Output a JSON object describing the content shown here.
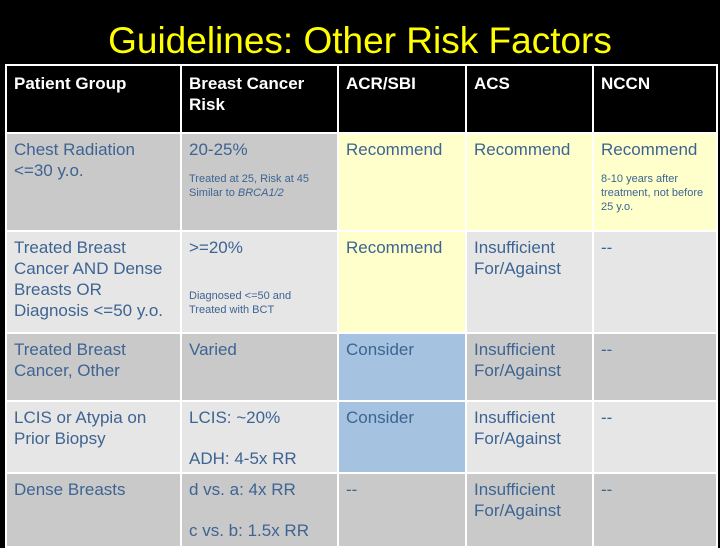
{
  "slide": {
    "title": "Guidelines:  Other Risk Factors"
  },
  "colors": {
    "title": "#ffff00",
    "header_bg": "#000000",
    "text": "#3d6492",
    "recommend_bg": "#ffffcc",
    "consider_bg": "#a5c3e0",
    "row_dark": "#c9c9c9",
    "row_light": "#e6e6e6"
  },
  "table": {
    "headers": [
      "Patient Group",
      "Breast Cancer Risk",
      "ACR/SBI",
      "ACS",
      "NCCN"
    ],
    "rows": [
      {
        "group": "Chest Radiation <=30 y.o.",
        "risk": "20-25%",
        "risk_note_1": "Treated at 25, Risk at 45",
        "risk_note_2": "Similar to ",
        "risk_note_2_italic": "BRCA1/2",
        "acr": "Recommend",
        "acs": "Recommend",
        "nccn": "Recommend",
        "nccn_note": "8-10 years after treatment, not before 25 y.o."
      },
      {
        "group": "Treated Breast Cancer  AND Dense Breasts  OR Diagnosis <=50 y.o.",
        "risk": ">=20%",
        "risk_note_1": "Diagnosed <=50 and",
        "risk_note_2": "Treated with BCT",
        "acr": "Recommend",
        "acs": "Insufficient For/Against",
        "nccn": "--"
      },
      {
        "group": "Treated Breast Cancer, Other",
        "risk": "Varied",
        "acr": "Consider",
        "acs": "Insufficient For/Against",
        "nccn": "--"
      },
      {
        "group": "LCIS or Atypia on Prior Biopsy",
        "risk": "LCIS:  ~20%",
        "risk_2": "ADH:  4-5x RR",
        "acr": "Consider",
        "acs": "Insufficient For/Against",
        "nccn": "--"
      },
      {
        "group": "Dense Breasts",
        "risk": "d vs. a:  4x RR",
        "risk_2": "c vs. b:  1.5x RR",
        "acr": "--",
        "acs": "Insufficient For/Against",
        "nccn": "--"
      }
    ]
  }
}
